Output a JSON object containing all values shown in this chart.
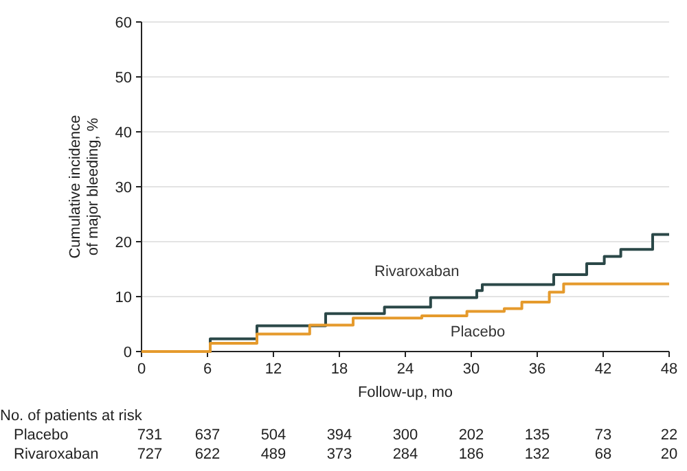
{
  "chart_data": {
    "type": "step",
    "xlabel": "Follow-up, mo",
    "ylabel": "Cumulative incidence of major bleeding, %",
    "xlim": [
      0,
      48
    ],
    "xticks": [
      0,
      6,
      12,
      18,
      24,
      30,
      36,
      42,
      48
    ],
    "ylim": [
      0,
      60
    ],
    "yticks": [
      0,
      10,
      20,
      30,
      40,
      50,
      60
    ],
    "grid": "y",
    "series": [
      {
        "name": "Rivaroxaban",
        "color": "#2b4848",
        "x": [
          0,
          6.25,
          10.5,
          16.75,
          22.1,
          26.3,
          30.5,
          31,
          37.5,
          40.5,
          42.1,
          43.6,
          46.5,
          48
        ],
        "values": [
          0,
          2.3,
          4.7,
          6.9,
          8.1,
          9.8,
          11.1,
          12.2,
          14,
          16,
          17.3,
          18.6,
          21.3,
          21.3
        ]
      },
      {
        "name": "Placebo",
        "color": "#e59a2c",
        "x": [
          0,
          6.25,
          10.5,
          15.3,
          19.25,
          25.5,
          29.6,
          33,
          34.6,
          37.1,
          38.4,
          48
        ],
        "values": [
          0,
          1.5,
          3.2,
          4.8,
          6.1,
          6.5,
          7.3,
          7.8,
          9,
          10.8,
          12.3,
          12.3
        ]
      }
    ],
    "annotations": [
      "No. of patients at risk",
      "Placebo 731 637 504 394 300 202 135 73 22",
      "Rivaroxaban 727 622 489 373 284 186 132 68 20"
    ]
  }
}
